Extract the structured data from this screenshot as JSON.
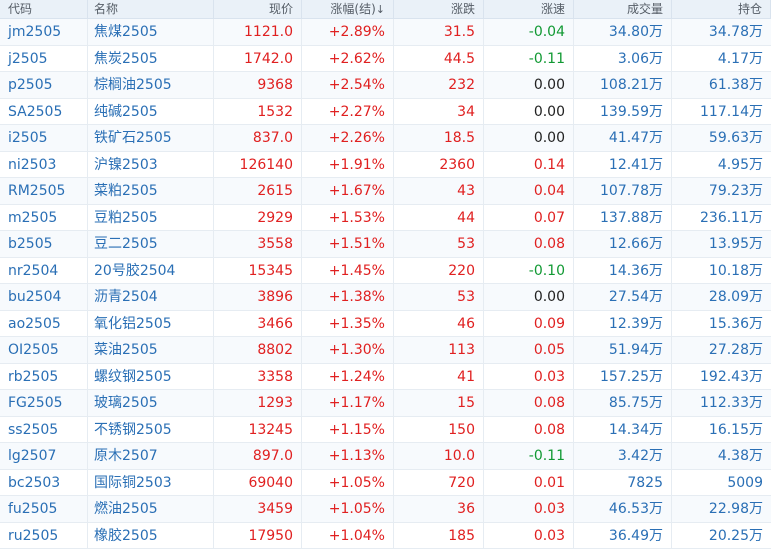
{
  "colors": {
    "up": "#e02020",
    "down": "#119933",
    "flat": "#222222",
    "link": "#2a6fb5",
    "header_bg": "#eaf1f8"
  },
  "header": {
    "code": "代码",
    "name": "名称",
    "price": "现价",
    "pct": "涨幅(结)",
    "sort_icon": "↓",
    "chg": "涨跌",
    "speed": "涨速",
    "volume": "成交量",
    "oi": "持仓"
  },
  "rows": [
    {
      "code": "jm2505",
      "name": "焦煤2505",
      "price": "1121.0",
      "pct": "+2.89%",
      "chg": "31.5",
      "speed": "-0.04",
      "volume": "34.80万",
      "oi": "34.78万"
    },
    {
      "code": "j2505",
      "name": "焦炭2505",
      "price": "1742.0",
      "pct": "+2.62%",
      "chg": "44.5",
      "speed": "-0.11",
      "volume": "3.06万",
      "oi": "4.17万"
    },
    {
      "code": "p2505",
      "name": "棕榈油2505",
      "price": "9368",
      "pct": "+2.54%",
      "chg": "232",
      "speed": "0.00",
      "volume": "108.21万",
      "oi": "61.38万"
    },
    {
      "code": "SA2505",
      "name": "纯碱2505",
      "price": "1532",
      "pct": "+2.27%",
      "chg": "34",
      "speed": "0.00",
      "volume": "139.59万",
      "oi": "117.14万"
    },
    {
      "code": "i2505",
      "name": "铁矿石2505",
      "price": "837.0",
      "pct": "+2.26%",
      "chg": "18.5",
      "speed": "0.00",
      "volume": "41.47万",
      "oi": "59.63万"
    },
    {
      "code": "ni2503",
      "name": "沪镍2503",
      "price": "126140",
      "pct": "+1.91%",
      "chg": "2360",
      "speed": "0.14",
      "volume": "12.41万",
      "oi": "4.95万"
    },
    {
      "code": "RM2505",
      "name": "菜粕2505",
      "price": "2615",
      "pct": "+1.67%",
      "chg": "43",
      "speed": "0.04",
      "volume": "107.78万",
      "oi": "79.23万"
    },
    {
      "code": "m2505",
      "name": "豆粕2505",
      "price": "2929",
      "pct": "+1.53%",
      "chg": "44",
      "speed": "0.07",
      "volume": "137.88万",
      "oi": "236.11万"
    },
    {
      "code": "b2505",
      "name": "豆二2505",
      "price": "3558",
      "pct": "+1.51%",
      "chg": "53",
      "speed": "0.08",
      "volume": "12.66万",
      "oi": "13.95万"
    },
    {
      "code": "nr2504",
      "name": "20号胶2504",
      "price": "15345",
      "pct": "+1.45%",
      "chg": "220",
      "speed": "-0.10",
      "volume": "14.36万",
      "oi": "10.18万"
    },
    {
      "code": "bu2504",
      "name": "沥青2504",
      "price": "3896",
      "pct": "+1.38%",
      "chg": "53",
      "speed": "0.00",
      "volume": "27.54万",
      "oi": "28.09万"
    },
    {
      "code": "ao2505",
      "name": "氧化铝2505",
      "price": "3466",
      "pct": "+1.35%",
      "chg": "46",
      "speed": "0.09",
      "volume": "12.39万",
      "oi": "15.36万"
    },
    {
      "code": "OI2505",
      "name": "菜油2505",
      "price": "8802",
      "pct": "+1.30%",
      "chg": "113",
      "speed": "0.05",
      "volume": "51.94万",
      "oi": "27.28万"
    },
    {
      "code": "rb2505",
      "name": "螺纹钢2505",
      "price": "3358",
      "pct": "+1.24%",
      "chg": "41",
      "speed": "0.03",
      "volume": "157.25万",
      "oi": "192.43万"
    },
    {
      "code": "FG2505",
      "name": "玻璃2505",
      "price": "1293",
      "pct": "+1.17%",
      "chg": "15",
      "speed": "0.08",
      "volume": "85.75万",
      "oi": "112.33万"
    },
    {
      "code": "ss2505",
      "name": "不锈钢2505",
      "price": "13245",
      "pct": "+1.15%",
      "chg": "150",
      "speed": "0.08",
      "volume": "14.34万",
      "oi": "16.15万"
    },
    {
      "code": "lg2507",
      "name": "原木2507",
      "price": "897.0",
      "pct": "+1.13%",
      "chg": "10.0",
      "speed": "-0.11",
      "volume": "3.42万",
      "oi": "4.38万"
    },
    {
      "code": "bc2503",
      "name": "国际铜2503",
      "price": "69040",
      "pct": "+1.05%",
      "chg": "720",
      "speed": "0.01",
      "volume": "7825",
      "oi": "5009"
    },
    {
      "code": "fu2505",
      "name": "燃油2505",
      "price": "3459",
      "pct": "+1.05%",
      "chg": "36",
      "speed": "0.03",
      "volume": "46.53万",
      "oi": "22.98万"
    },
    {
      "code": "ru2505",
      "name": "橡胶2505",
      "price": "17950",
      "pct": "+1.04%",
      "chg": "185",
      "speed": "0.03",
      "volume": "36.49万",
      "oi": "20.25万"
    }
  ]
}
